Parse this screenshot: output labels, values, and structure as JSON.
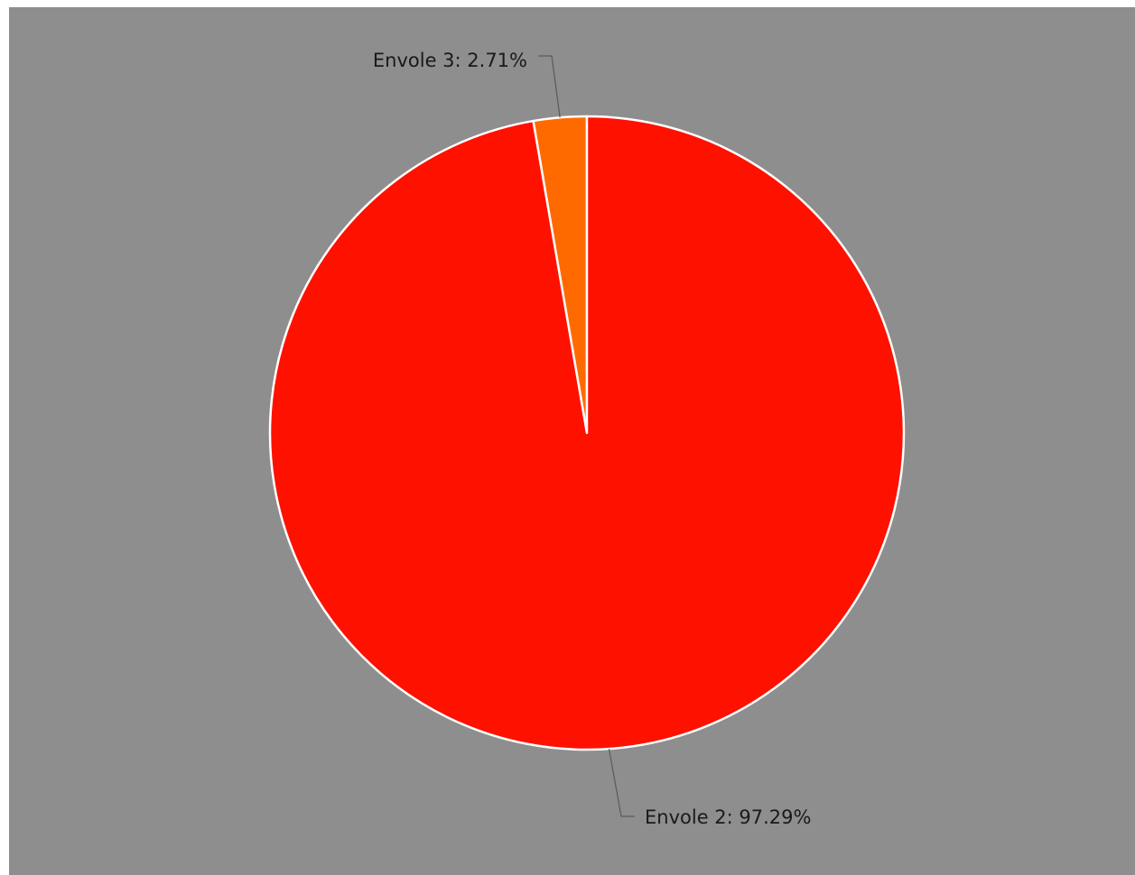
{
  "chart_data": {
    "type": "pie",
    "title": "",
    "background_color": "#8e8e8e",
    "slices": [
      {
        "name": "Envole 3",
        "value": 2.71,
        "label": "Envole 3: 2.71%",
        "color": "#ff6a00"
      },
      {
        "name": "Envole 2",
        "value": 97.29,
        "label": "Envole 2: 97.29%",
        "color": "#ff1100"
      }
    ],
    "start_angle_deg": 0,
    "direction": "counterclockwise",
    "slice_border_color": "#ffffff",
    "leader_line_color": "#5a5a5a"
  }
}
